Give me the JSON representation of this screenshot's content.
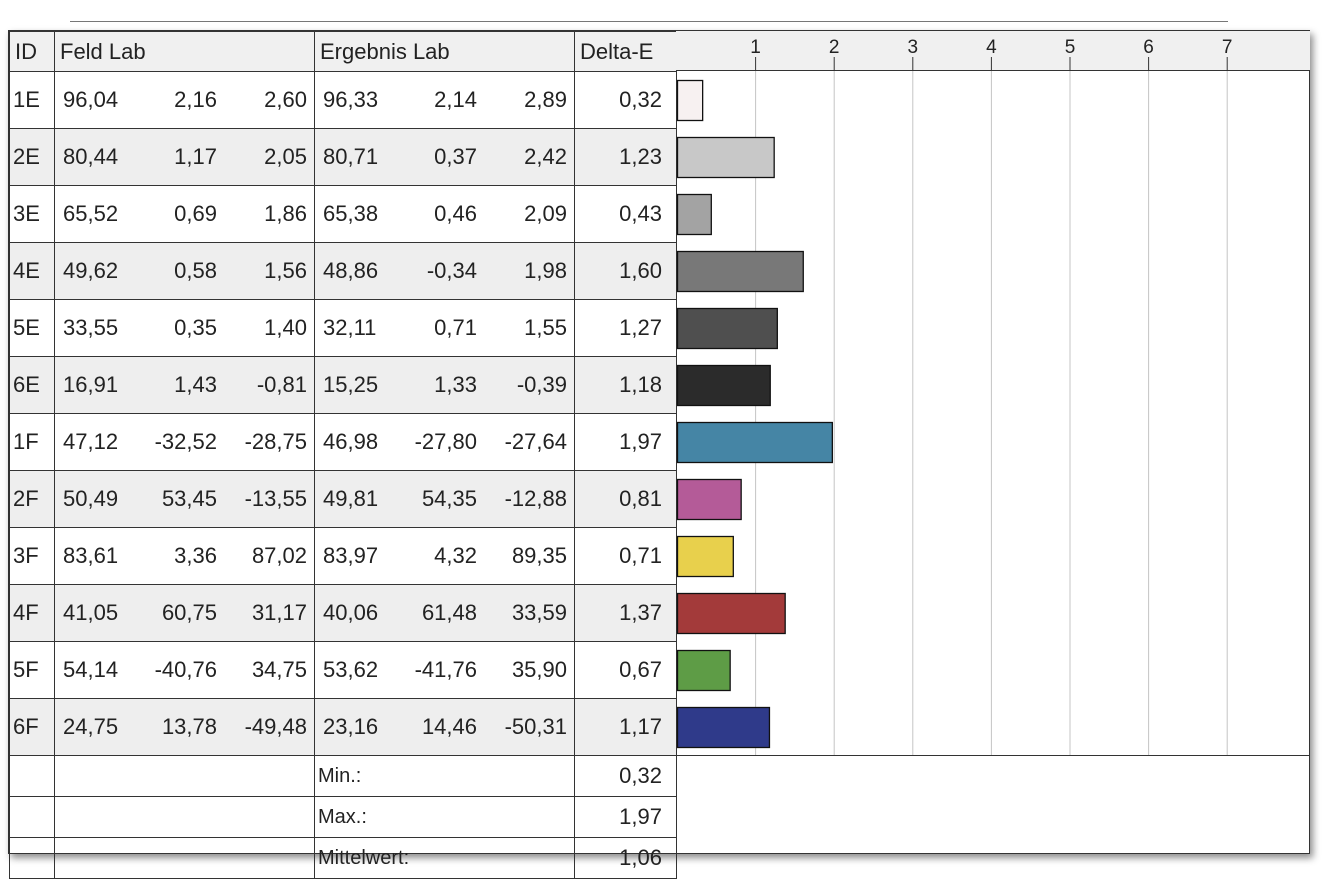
{
  "table": {
    "headers": {
      "id": "ID",
      "feld": "Feld Lab",
      "ergebnis": "Ergebnis Lab",
      "delta": "Delta-E"
    },
    "rows": [
      {
        "id": "1E",
        "feld": [
          "96,04",
          "2,16",
          "2,60"
        ],
        "ergebnis": [
          "96,33",
          "2,14",
          "2,89"
        ],
        "delta": "0,32"
      },
      {
        "id": "2E",
        "feld": [
          "80,44",
          "1,17",
          "2,05"
        ],
        "ergebnis": [
          "80,71",
          "0,37",
          "2,42"
        ],
        "delta": "1,23"
      },
      {
        "id": "3E",
        "feld": [
          "65,52",
          "0,69",
          "1,86"
        ],
        "ergebnis": [
          "65,38",
          "0,46",
          "2,09"
        ],
        "delta": "0,43"
      },
      {
        "id": "4E",
        "feld": [
          "49,62",
          "0,58",
          "1,56"
        ],
        "ergebnis": [
          "48,86",
          "-0,34",
          "1,98"
        ],
        "delta": "1,60"
      },
      {
        "id": "5E",
        "feld": [
          "33,55",
          "0,35",
          "1,40"
        ],
        "ergebnis": [
          "32,11",
          "0,71",
          "1,55"
        ],
        "delta": "1,27"
      },
      {
        "id": "6E",
        "feld": [
          "16,91",
          "1,43",
          "-0,81"
        ],
        "ergebnis": [
          "15,25",
          "1,33",
          "-0,39"
        ],
        "delta": "1,18"
      },
      {
        "id": "1F",
        "feld": [
          "47,12",
          "-32,52",
          "-28,75"
        ],
        "ergebnis": [
          "46,98",
          "-27,80",
          "-27,64"
        ],
        "delta": "1,97"
      },
      {
        "id": "2F",
        "feld": [
          "50,49",
          "53,45",
          "-13,55"
        ],
        "ergebnis": [
          "49,81",
          "54,35",
          "-12,88"
        ],
        "delta": "0,81"
      },
      {
        "id": "3F",
        "feld": [
          "83,61",
          "3,36",
          "87,02"
        ],
        "ergebnis": [
          "83,97",
          "4,32",
          "89,35"
        ],
        "delta": "0,71"
      },
      {
        "id": "4F",
        "feld": [
          "41,05",
          "60,75",
          "31,17"
        ],
        "ergebnis": [
          "40,06",
          "61,48",
          "33,59"
        ],
        "delta": "1,37"
      },
      {
        "id": "5F",
        "feld": [
          "54,14",
          "-40,76",
          "34,75"
        ],
        "ergebnis": [
          "53,62",
          "-41,76",
          "35,90"
        ],
        "delta": "0,67"
      },
      {
        "id": "6F",
        "feld": [
          "24,75",
          "13,78",
          "-49,48"
        ],
        "ergebnis": [
          "23,16",
          "14,46",
          "-50,31"
        ],
        "delta": "1,17"
      }
    ],
    "summary": [
      {
        "label": "Min.:",
        "value": "0,32"
      },
      {
        "label": "Max.:",
        "value": "1,97"
      },
      {
        "label": "Mittelwert:",
        "value": "1,06"
      }
    ]
  },
  "chart_data": {
    "type": "bar",
    "orientation": "horizontal",
    "categories": [
      "1E",
      "2E",
      "3E",
      "4E",
      "5E",
      "6E",
      "1F",
      "2F",
      "3F",
      "4F",
      "5F",
      "6F"
    ],
    "values": [
      0.32,
      1.23,
      0.43,
      1.6,
      1.27,
      1.18,
      1.97,
      0.81,
      0.71,
      1.37,
      0.67,
      1.17
    ],
    "colors": [
      "#f7f1f1",
      "#c8c8c8",
      "#a3a3a3",
      "#787878",
      "#4f4f4f",
      "#2b2b2b",
      "#4585a5",
      "#b45b98",
      "#e8d04c",
      "#a33a3a",
      "#5e9c46",
      "#2f3a8a"
    ],
    "xticks": [
      "1",
      "2",
      "3",
      "4",
      "5",
      "6",
      "7"
    ],
    "xlim": [
      0,
      8
    ],
    "grid": true
  }
}
